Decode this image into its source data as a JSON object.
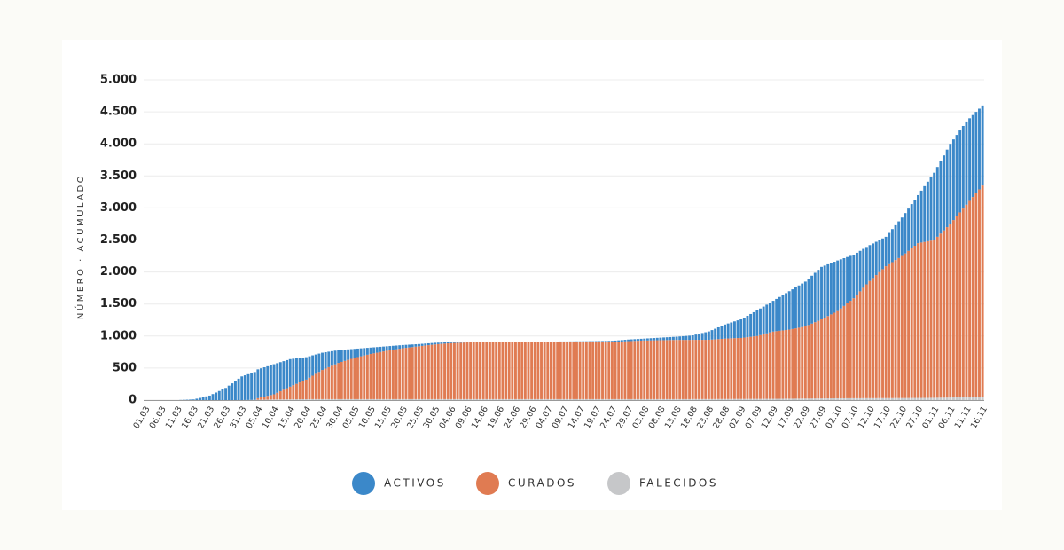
{
  "chart_data": {
    "type": "stacked_bar",
    "ylabel": "NÚMERO · ACUMULADO",
    "ylim": [
      0,
      5000
    ],
    "yticks": [
      0,
      500,
      {
        "value": 1000,
        "label": "1.000"
      },
      {
        "value": 1500,
        "label": "1.500"
      },
      {
        "value": 2000,
        "label": "2.000"
      },
      {
        "value": 2500,
        "label": "2.500"
      },
      {
        "value": 3000,
        "label": "3.000"
      },
      {
        "value": 3500,
        "label": "3.500"
      },
      {
        "value": 4000,
        "label": "4.000"
      },
      {
        "value": 4500,
        "label": "4.500"
      },
      {
        "value": 5000,
        "label": "5.000"
      }
    ],
    "grid": true,
    "legend": "bottom",
    "categories": [
      "01.03",
      null,
      null,
      null,
      null,
      "06.03",
      null,
      null,
      null,
      null,
      "11.03",
      null,
      null,
      null,
      null,
      "16.03",
      null,
      null,
      null,
      null,
      "21.03",
      null,
      null,
      null,
      null,
      "26.03",
      null,
      null,
      null,
      null,
      "31.03",
      null,
      null,
      null,
      null,
      "05.04",
      null,
      null,
      null,
      null,
      "10.04",
      null,
      null,
      null,
      null,
      "15.04",
      null,
      null,
      null,
      null,
      "20.04",
      null,
      null,
      null,
      null,
      "25.04",
      null,
      null,
      null,
      null,
      "30.04",
      null,
      null,
      null,
      null,
      "05.05",
      null,
      null,
      null,
      null,
      "10.05",
      null,
      null,
      null,
      null,
      "15.05",
      null,
      null,
      null,
      null,
      "20.05",
      null,
      null,
      null,
      null,
      "25.05",
      null,
      null,
      null,
      null,
      "30.05",
      null,
      null,
      null,
      null,
      "04.06",
      null,
      null,
      null,
      null,
      "09.06",
      null,
      null,
      null,
      null,
      "14.06",
      null,
      null,
      null,
      null,
      "19.06",
      null,
      null,
      null,
      null,
      "24.06",
      null,
      null,
      null,
      null,
      "29.06",
      null,
      null,
      null,
      null,
      "04.07",
      null,
      null,
      null,
      null,
      "09.07",
      null,
      null,
      null,
      null,
      "14.07",
      null,
      null,
      null,
      null,
      "19.07",
      null,
      null,
      null,
      null,
      "24.07",
      null,
      null,
      null,
      null,
      "29.07",
      null,
      null,
      null,
      null,
      "03.08",
      null,
      null,
      null,
      null,
      "08.08",
      null,
      null,
      null,
      null,
      "13.08",
      null,
      null,
      null,
      null,
      "18.08",
      null,
      null,
      null,
      null,
      "23.08",
      null,
      null,
      null,
      null,
      "28.08",
      null,
      null,
      null,
      null,
      "02.09",
      null,
      null,
      null,
      null,
      "07.09",
      null,
      null,
      null,
      null,
      "12.09",
      null,
      null,
      null,
      null,
      "17.09",
      null,
      null,
      null,
      null,
      "22.09",
      null,
      null,
      null,
      null,
      "27.09",
      null,
      null,
      null,
      null,
      "02.10",
      null,
      null,
      null,
      null,
      "07.10",
      null,
      null,
      null,
      null,
      "12.10",
      null,
      null,
      null,
      null,
      "17.10",
      null,
      null,
      null,
      null,
      "22.10",
      null,
      null,
      null,
      null,
      "27.10",
      null,
      null,
      null,
      null,
      "01.11",
      null,
      null,
      null,
      null,
      "06.11",
      null,
      null,
      null,
      null,
      "11.11",
      null,
      null,
      null,
      null,
      "16.11"
    ],
    "series": [
      {
        "name": "ACTIVOS",
        "color": "#3b88c9",
        "values": [
          0,
          0,
          0,
          0,
          0,
          0,
          0,
          0,
          0,
          0,
          0,
          2,
          4,
          6,
          8,
          10,
          22,
          34,
          46,
          58,
          70,
          94,
          118,
          142,
          166,
          190,
          226,
          262,
          298,
          334,
          370,
          386,
          402,
          418,
          434,
          450,
          454,
          458,
          462,
          466,
          470,
          462,
          454,
          446,
          438,
          430,
          414,
          398,
          382,
          366,
          350,
          334,
          318,
          302,
          286,
          270,
          256,
          242,
          228,
          214,
          200,
          188,
          176,
          164,
          152,
          140,
          132,
          124,
          116,
          108,
          100,
          94,
          88,
          82,
          76,
          70,
          66,
          62,
          58,
          54,
          50,
          47,
          44,
          41,
          38,
          35,
          33,
          31,
          29,
          27,
          25,
          23,
          21,
          19,
          17,
          15,
          14,
          13,
          12,
          11,
          10,
          10,
          9,
          9,
          8,
          8,
          8,
          8,
          8,
          8,
          8,
          8,
          8,
          8,
          8,
          8,
          8,
          8,
          8,
          8,
          8,
          8,
          8,
          8,
          8,
          8,
          8,
          9,
          9,
          10,
          10,
          10,
          11,
          11,
          12,
          12,
          13,
          13,
          14,
          14,
          15,
          16,
          17,
          18,
          19,
          20,
          21,
          22,
          23,
          24,
          25,
          26,
          27,
          28,
          29,
          30,
          32,
          34,
          36,
          38,
          40,
          42,
          44,
          46,
          48,
          50,
          54,
          58,
          62,
          66,
          70,
          82,
          94,
          106,
          118,
          130,
          148,
          166,
          184,
          202,
          220,
          234,
          248,
          262,
          276,
          290,
          312,
          334,
          356,
          378,
          400,
          416,
          432,
          448,
          464,
          480,
          504,
          528,
          552,
          576,
          600,
          620,
          640,
          660,
          680,
          700,
          724,
          748,
          772,
          796,
          820,
          814,
          808,
          802,
          796,
          790,
          768,
          746,
          724,
          702,
          680,
          656,
          632,
          608,
          584,
          560,
          540,
          520,
          500,
          480,
          460,
          488,
          516,
          544,
          572,
          600,
          630,
          660,
          690,
          720,
          750,
          810,
          870,
          930,
          990,
          1050,
          1090,
          1130,
          1170,
          1210,
          1250,
          1260,
          1270,
          1280,
          1290,
          1300,
          1290,
          1280,
          1270,
          1260,
          1250
        ]
      },
      {
        "name": "CURADOS",
        "color": "#e07b52",
        "values": [
          0,
          0,
          0,
          0,
          0,
          0,
          0,
          0,
          0,
          0,
          0,
          0,
          0,
          0,
          0,
          0,
          0,
          0,
          0,
          0,
          0,
          0,
          0,
          0,
          0,
          0,
          0,
          0,
          0,
          0,
          0,
          0,
          0,
          0,
          0,
          25,
          36,
          47,
          58,
          69,
          80,
          104,
          127,
          151,
          174,
          198,
          220,
          241,
          263,
          284,
          306,
          336,
          366,
          395,
          425,
          455,
          477,
          499,
          521,
          543,
          565,
          581,
          597,
          613,
          629,
          645,
          657,
          669,
          681,
          693,
          705,
          715,
          725,
          735,
          745,
          755,
          763,
          771,
          779,
          787,
          795,
          801,
          807,
          813,
          819,
          825,
          831,
          837,
          843,
          849,
          855,
          859,
          863,
          867,
          871,
          875,
          877,
          879,
          881,
          883,
          885,
          885,
          886,
          886,
          887,
          887,
          887,
          887,
          887,
          887,
          887,
          887,
          888,
          888,
          889,
          889,
          889,
          889,
          889,
          889,
          889,
          889,
          889,
          889,
          889,
          890,
          890,
          890,
          890,
          890,
          890,
          890,
          890,
          890,
          890,
          890,
          890,
          890,
          890,
          890,
          890,
          890,
          890,
          890,
          890,
          890,
          893,
          896,
          899,
          902,
          905,
          907,
          909,
          911,
          913,
          915,
          916,
          917,
          918,
          919,
          920,
          921,
          922,
          923,
          924,
          925,
          925,
          925,
          925,
          925,
          925,
          925,
          925,
          925,
          925,
          926,
          929,
          932,
          935,
          939,
          943,
          945,
          947,
          949,
          951,
          952,
          958,
          964,
          969,
          975,
          981,
          995,
          1009,
          1022,
          1036,
          1050,
          1056,
          1061,
          1067,
          1072,
          1078,
          1088,
          1097,
          1107,
          1116,
          1126,
          1148,
          1169,
          1191,
          1212,
          1234,
          1260,
          1285,
          1311,
          1336,
          1362,
          1402,
          1442,
          1481,
          1521,
          1561,
          1615,
          1669,
          1723,
          1777,
          1830,
          1876,
          1922,
          1967,
          2013,
          2059,
          2091,
          2123,
          2154,
          2186,
          2218,
          2258,
          2297,
          2337,
          2376,
          2416,
          2426,
          2435,
          2445,
          2454,
          2464,
          2513,
          2562,
          2612,
          2661,
          2710,
          2769,
          2828,
          2887,
          2946,
          3005,
          3064,
          3123,
          3182,
          3241,
          3300
        ]
      },
      {
        "name": "FALECIDOS",
        "color": "#c6c7c9",
        "values": [
          0,
          0,
          0,
          0,
          0,
          0,
          0,
          0,
          0,
          0,
          0,
          0,
          0,
          0,
          0,
          0,
          0,
          0,
          0,
          0,
          0,
          0,
          0,
          0,
          0,
          0,
          0,
          0,
          0,
          0,
          0,
          1,
          2,
          3,
          4,
          5,
          6,
          7,
          8,
          9,
          10,
          10,
          11,
          11,
          12,
          12,
          12,
          13,
          13,
          14,
          14,
          14,
          15,
          15,
          15,
          15,
          15,
          15,
          15,
          15,
          15,
          15,
          15,
          15,
          15,
          15,
          15,
          15,
          15,
          15,
          15,
          15,
          15,
          15,
          15,
          15,
          15,
          15,
          15,
          15,
          15,
          15,
          15,
          15,
          15,
          15,
          15,
          15,
          15,
          15,
          15,
          15,
          15,
          15,
          15,
          15,
          15,
          15,
          15,
          15,
          15,
          15,
          15,
          15,
          15,
          15,
          15,
          15,
          15,
          15,
          15,
          15,
          15,
          15,
          15,
          15,
          15,
          15,
          15,
          15,
          15,
          15,
          15,
          15,
          15,
          15,
          15,
          15,
          15,
          15,
          15,
          15,
          15,
          15,
          15,
          15,
          15,
          15,
          15,
          15,
          15,
          15,
          15,
          15,
          15,
          15,
          15,
          15,
          15,
          15,
          15,
          15,
          15,
          15,
          15,
          15,
          15,
          15,
          15,
          15,
          15,
          15,
          15,
          15,
          15,
          15,
          15,
          15,
          15,
          15,
          16,
          16,
          16,
          16,
          16,
          16,
          16,
          16,
          17,
          17,
          17,
          17,
          17,
          18,
          18,
          18,
          18,
          18,
          19,
          19,
          19,
          19,
          19,
          20,
          20,
          20,
          20,
          21,
          21,
          22,
          22,
          22,
          23,
          23,
          24,
          24,
          24,
          25,
          25,
          26,
          26,
          26,
          27,
          27,
          28,
          28,
          28,
          28,
          29,
          29,
          29,
          29,
          29,
          30,
          30,
          30,
          30,
          30,
          31,
          31,
          31,
          31,
          31,
          32,
          32,
          32,
          32,
          33,
          33,
          34,
          34,
          34,
          35,
          35,
          36,
          36,
          37,
          38,
          38,
          39,
          40,
          41,
          42,
          43,
          44,
          45,
          46,
          47,
          48,
          49,
          50
        ]
      }
    ]
  }
}
